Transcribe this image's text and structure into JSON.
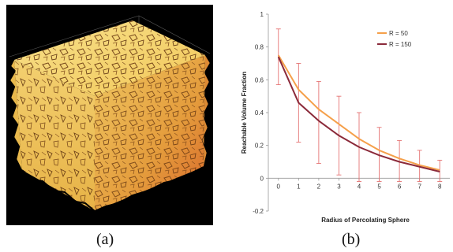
{
  "captions": {
    "a": "(a)",
    "b": "(b)"
  },
  "chart_data": {
    "type": "line",
    "title": "",
    "xlabel": "Radius of Percolating Sphere",
    "ylabel": "Reachable Volume Fraction",
    "x": [
      0,
      1,
      2,
      3,
      4,
      5,
      6,
      7,
      8
    ],
    "xticks": [
      "0",
      "1",
      "2",
      "3",
      "4",
      "5",
      "6",
      "7",
      "8"
    ],
    "ylim": [
      -0.2,
      1
    ],
    "yticks": [
      "-0.2",
      "0",
      "0.2",
      "0.4",
      "0.6",
      "0.8",
      "1"
    ],
    "grid": false,
    "legend_position": "top-right",
    "series": [
      {
        "name": "R = 50",
        "color": "#f5a04a",
        "values": [
          0.75,
          0.54,
          0.42,
          0.33,
          0.24,
          0.17,
          0.12,
          0.08,
          0.05
        ]
      },
      {
        "name": "R = 150",
        "color": "#8b2a3a",
        "values": [
          0.74,
          0.46,
          0.35,
          0.26,
          0.19,
          0.14,
          0.1,
          0.07,
          0.04
        ]
      }
    ],
    "error_bars": {
      "color": "#e57373",
      "low": [
        0.57,
        0.22,
        0.09,
        0.02,
        -0.02,
        -0.02,
        -0.02,
        -0.02,
        -0.02
      ],
      "high": [
        0.91,
        0.7,
        0.59,
        0.5,
        0.4,
        0.31,
        0.23,
        0.17,
        0.11
      ]
    }
  }
}
